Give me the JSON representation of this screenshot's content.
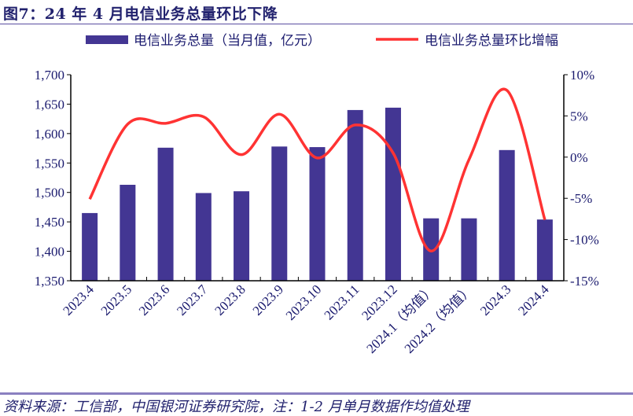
{
  "title": "图7：24 年 4 月电信业务总量环比下降",
  "source": "资料来源：工信部，中国银河证券研究院，注：1-2 月单月数据作均值处理",
  "chart_data": {
    "type": "bar+line",
    "categories": [
      "2023.4",
      "2023.5",
      "2023.6",
      "2023.7",
      "2023.8",
      "2023.9",
      "2023.10",
      "2023.11",
      "2023.12",
      "2024.1（均值）",
      "2024.2（均值）",
      "2024.3",
      "2024.4"
    ],
    "series": [
      {
        "name": "电信业务总量（当月值，亿元）",
        "type": "bar",
        "axis": "left",
        "color": "#433693",
        "values": [
          1465,
          1513,
          1576,
          1499,
          1502,
          1578,
          1577,
          1640,
          1644,
          1456,
          1456,
          1572,
          1454
        ]
      },
      {
        "name": "电信业务总量环比增幅",
        "type": "line",
        "axis": "right",
        "color": "#ff3333",
        "smooth": true,
        "values": [
          -5.1,
          4.0,
          4.1,
          4.9,
          0.3,
          5.2,
          -0.1,
          3.9,
          0.5,
          -11.4,
          -0.3,
          8.1,
          -7.6
        ]
      }
    ],
    "y_left": {
      "min": 1350,
      "max": 1700,
      "ticks": [
        "1,350",
        "1,400",
        "1,450",
        "1,500",
        "1,550",
        "1,600",
        "1,650",
        "1,700"
      ]
    },
    "y_right": {
      "min": -15,
      "max": 10,
      "ticks": [
        "-15%",
        "-10%",
        "-5%",
        "0%",
        "5%",
        "10%"
      ]
    },
    "grid": false,
    "legend": "top"
  }
}
